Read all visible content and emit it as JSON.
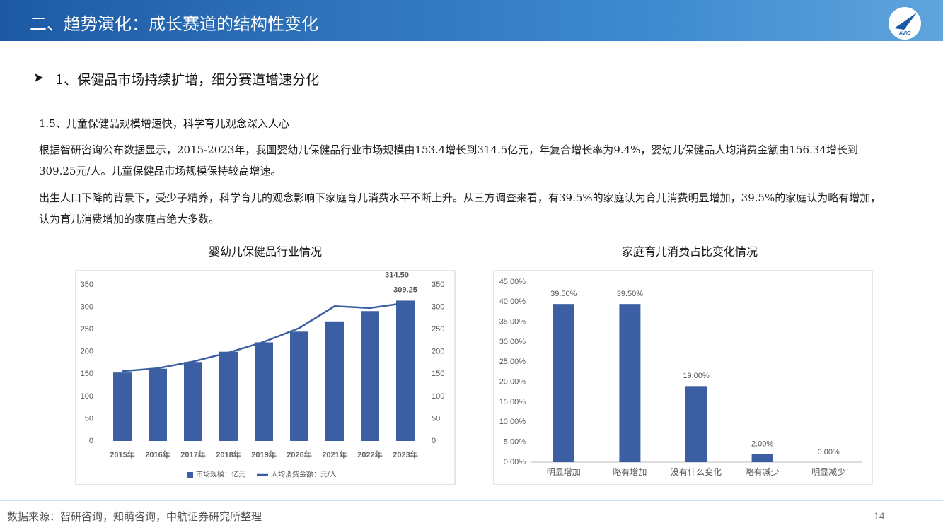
{
  "header": {
    "title": "二、趋势演化：成长赛道的结构性变化",
    "logo_text": "AVIC"
  },
  "section": "1、保健品市场持续扩增，细分赛道增速分化",
  "subtitle": "1.5、儿童保健品规模增速快，科学育儿观念深入人心",
  "paragraphs": [
    "根据智研咨询公布数据显示，2015-2023年，我国婴幼儿保健品行业市场规模由153.4增长到314.5亿元，年复合增长率为9.4%，婴幼儿保健品人均消费金额由156.34增长到309.25元/人。儿童保健品市场规模保持较高增速。",
    "出生人口下降的背景下，受少子精养，科学育儿的观念影响下家庭育儿消费水平不断上升。从三方调查来看，有39.5%的家庭认为育儿消费明显增加，39.5%的家庭认为略有增加，认为育儿消费增加的家庭占绝大多数。"
  ],
  "chart_data": [
    {
      "type": "combo",
      "title": "婴幼儿保健品行业情况",
      "categories": [
        "2015年",
        "2016年",
        "2017年",
        "2018年",
        "2019年",
        "2020年",
        "2021年",
        "2022年",
        "2023年"
      ],
      "series": [
        {
          "name": "市场规模：亿元",
          "type": "bar",
          "color": "#3c5fa3",
          "values": [
            153.4,
            162,
            177,
            200,
            221,
            245,
            268,
            291,
            314.5
          ],
          "value_labels": [
            null,
            null,
            null,
            null,
            null,
            null,
            null,
            null,
            "314.50"
          ]
        },
        {
          "name": "人均消费金额：元/人",
          "type": "line",
          "axis": "y2",
          "color": "#3c5fa3",
          "values": [
            156.34,
            163,
            178,
            198,
            222,
            253,
            302,
            298,
            309.25
          ],
          "value_labels": [
            null,
            null,
            null,
            null,
            null,
            null,
            null,
            null,
            "309.25"
          ]
        }
      ],
      "ylim": [
        0,
        350
      ],
      "yticks": [
        0,
        50,
        100,
        150,
        200,
        250,
        300,
        350
      ],
      "y2lim": [
        0,
        350
      ],
      "y2ticks": [
        0,
        50,
        100,
        150,
        200,
        250,
        300,
        350
      ],
      "grid": false,
      "legend": "bottom"
    },
    {
      "type": "bar",
      "title": "家庭育儿消费占比变化情况",
      "categories": [
        "明显增加",
        "略有增加",
        "没有什么变化",
        "略有减少",
        "明显减少"
      ],
      "values": [
        39.5,
        39.5,
        19,
        2,
        0
      ],
      "value_labels": [
        "39.50%",
        "39.50%",
        "19.00%",
        "2.00%",
        "0.00%"
      ],
      "color": "#3c5fa3",
      "ylim": [
        0,
        45
      ],
      "yticks": [
        {
          "value": 0,
          "label": "0.00%"
        },
        {
          "value": 5,
          "label": "5.00%"
        },
        {
          "value": 10,
          "label": "10.00%"
        },
        {
          "value": 15,
          "label": "15.00%"
        },
        {
          "value": 20,
          "label": "20.00%"
        },
        {
          "value": 25,
          "label": "25.00%"
        },
        {
          "value": 30,
          "label": "30.00%"
        },
        {
          "value": 35,
          "label": "35.00%"
        },
        {
          "value": 40,
          "label": "40.00%"
        },
        {
          "value": 45,
          "label": "45.00%"
        }
      ],
      "grid": false
    }
  ],
  "source": "数据来源：智研咨询，知萌咨询，中航证券研究所整理",
  "page_number": "14"
}
